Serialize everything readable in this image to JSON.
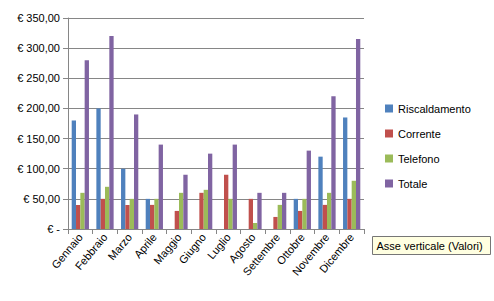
{
  "chart_data": {
    "type": "bar",
    "categories": [
      "Gennaio",
      "Febbraio",
      "Marzo",
      "Aprile",
      "Maggio",
      "Giugno",
      "Luglio",
      "Agosto",
      "Settembre",
      "Ottobre",
      "Novembre",
      "Dicembre"
    ],
    "series": [
      {
        "name": "Riscaldamento",
        "color": "#4f81bd",
        "values": [
          180,
          200,
          100,
          50,
          0,
          0,
          0,
          0,
          0,
          50,
          120,
          185
        ]
      },
      {
        "name": "Corrente",
        "color": "#c0504d",
        "values": [
          40,
          50,
          40,
          40,
          30,
          60,
          90,
          50,
          20,
          30,
          40,
          50
        ]
      },
      {
        "name": "Telefono",
        "color": "#9bbb59",
        "values": [
          60,
          70,
          50,
          50,
          60,
          65,
          50,
          10,
          40,
          50,
          60,
          80
        ]
      },
      {
        "name": "Totale",
        "color": "#8064a2",
        "values": [
          280,
          320,
          190,
          140,
          90,
          125,
          140,
          60,
          60,
          130,
          220,
          315
        ]
      }
    ],
    "ylim": [
      0,
      350
    ],
    "yticks": [
      {
        "value": 0,
        "label": "€ -"
      },
      {
        "value": 50,
        "label": "€ 50,00"
      },
      {
        "value": 100,
        "label": "€ 100,00"
      },
      {
        "value": 150,
        "label": "€ 150,00"
      },
      {
        "value": 200,
        "label": "€ 200,00"
      },
      {
        "value": 250,
        "label": "€ 250,00"
      },
      {
        "value": 300,
        "label": "€ 300,00"
      },
      {
        "value": 350,
        "label": "€ 350,00"
      }
    ],
    "grid": true,
    "legend": "right",
    "annotation": "Asse verticale (Valori)"
  }
}
